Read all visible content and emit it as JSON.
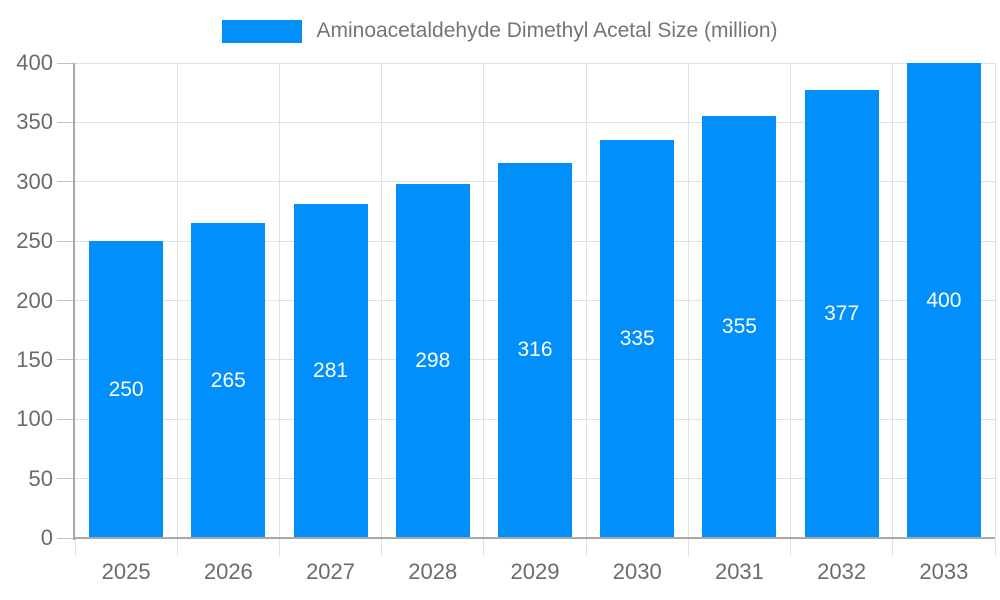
{
  "legend": {
    "label": "Aminoacetaldehyde Dimethyl Acetal Size (million)"
  },
  "chart_data": {
    "type": "bar",
    "title": "Aminoacetaldehyde Dimethyl Acetal Size (million)",
    "categories": [
      "2025",
      "2026",
      "2027",
      "2028",
      "2029",
      "2030",
      "2031",
      "2032",
      "2033"
    ],
    "values": [
      250,
      265,
      281,
      298,
      316,
      335,
      355,
      377,
      400
    ],
    "series": [
      {
        "name": "Aminoacetaldehyde Dimethyl Acetal Size (million)",
        "values": [
          250,
          265,
          281,
          298,
          316,
          335,
          355,
          377,
          400
        ]
      }
    ],
    "xlabel": "",
    "ylabel": "",
    "ylim": [
      0,
      400
    ],
    "ytick_step": 50,
    "ytick_labels": [
      "0",
      "50",
      "100",
      "150",
      "200",
      "250",
      "300",
      "350",
      "400"
    ],
    "grid": true,
    "legend_position": "top",
    "value_labels_inside_bars": true,
    "colors": {
      "bar": "#008FFB",
      "bar_value_text": "#ffffff",
      "axis_label_text": "#6b6b6b",
      "legend_text": "#757575",
      "gridline": "#e0e0e0",
      "axis_line": "#a8a8a8",
      "y_tick": "#c2c2c2",
      "x_tick": "#e0e0e0",
      "background": "#ffffff"
    }
  }
}
